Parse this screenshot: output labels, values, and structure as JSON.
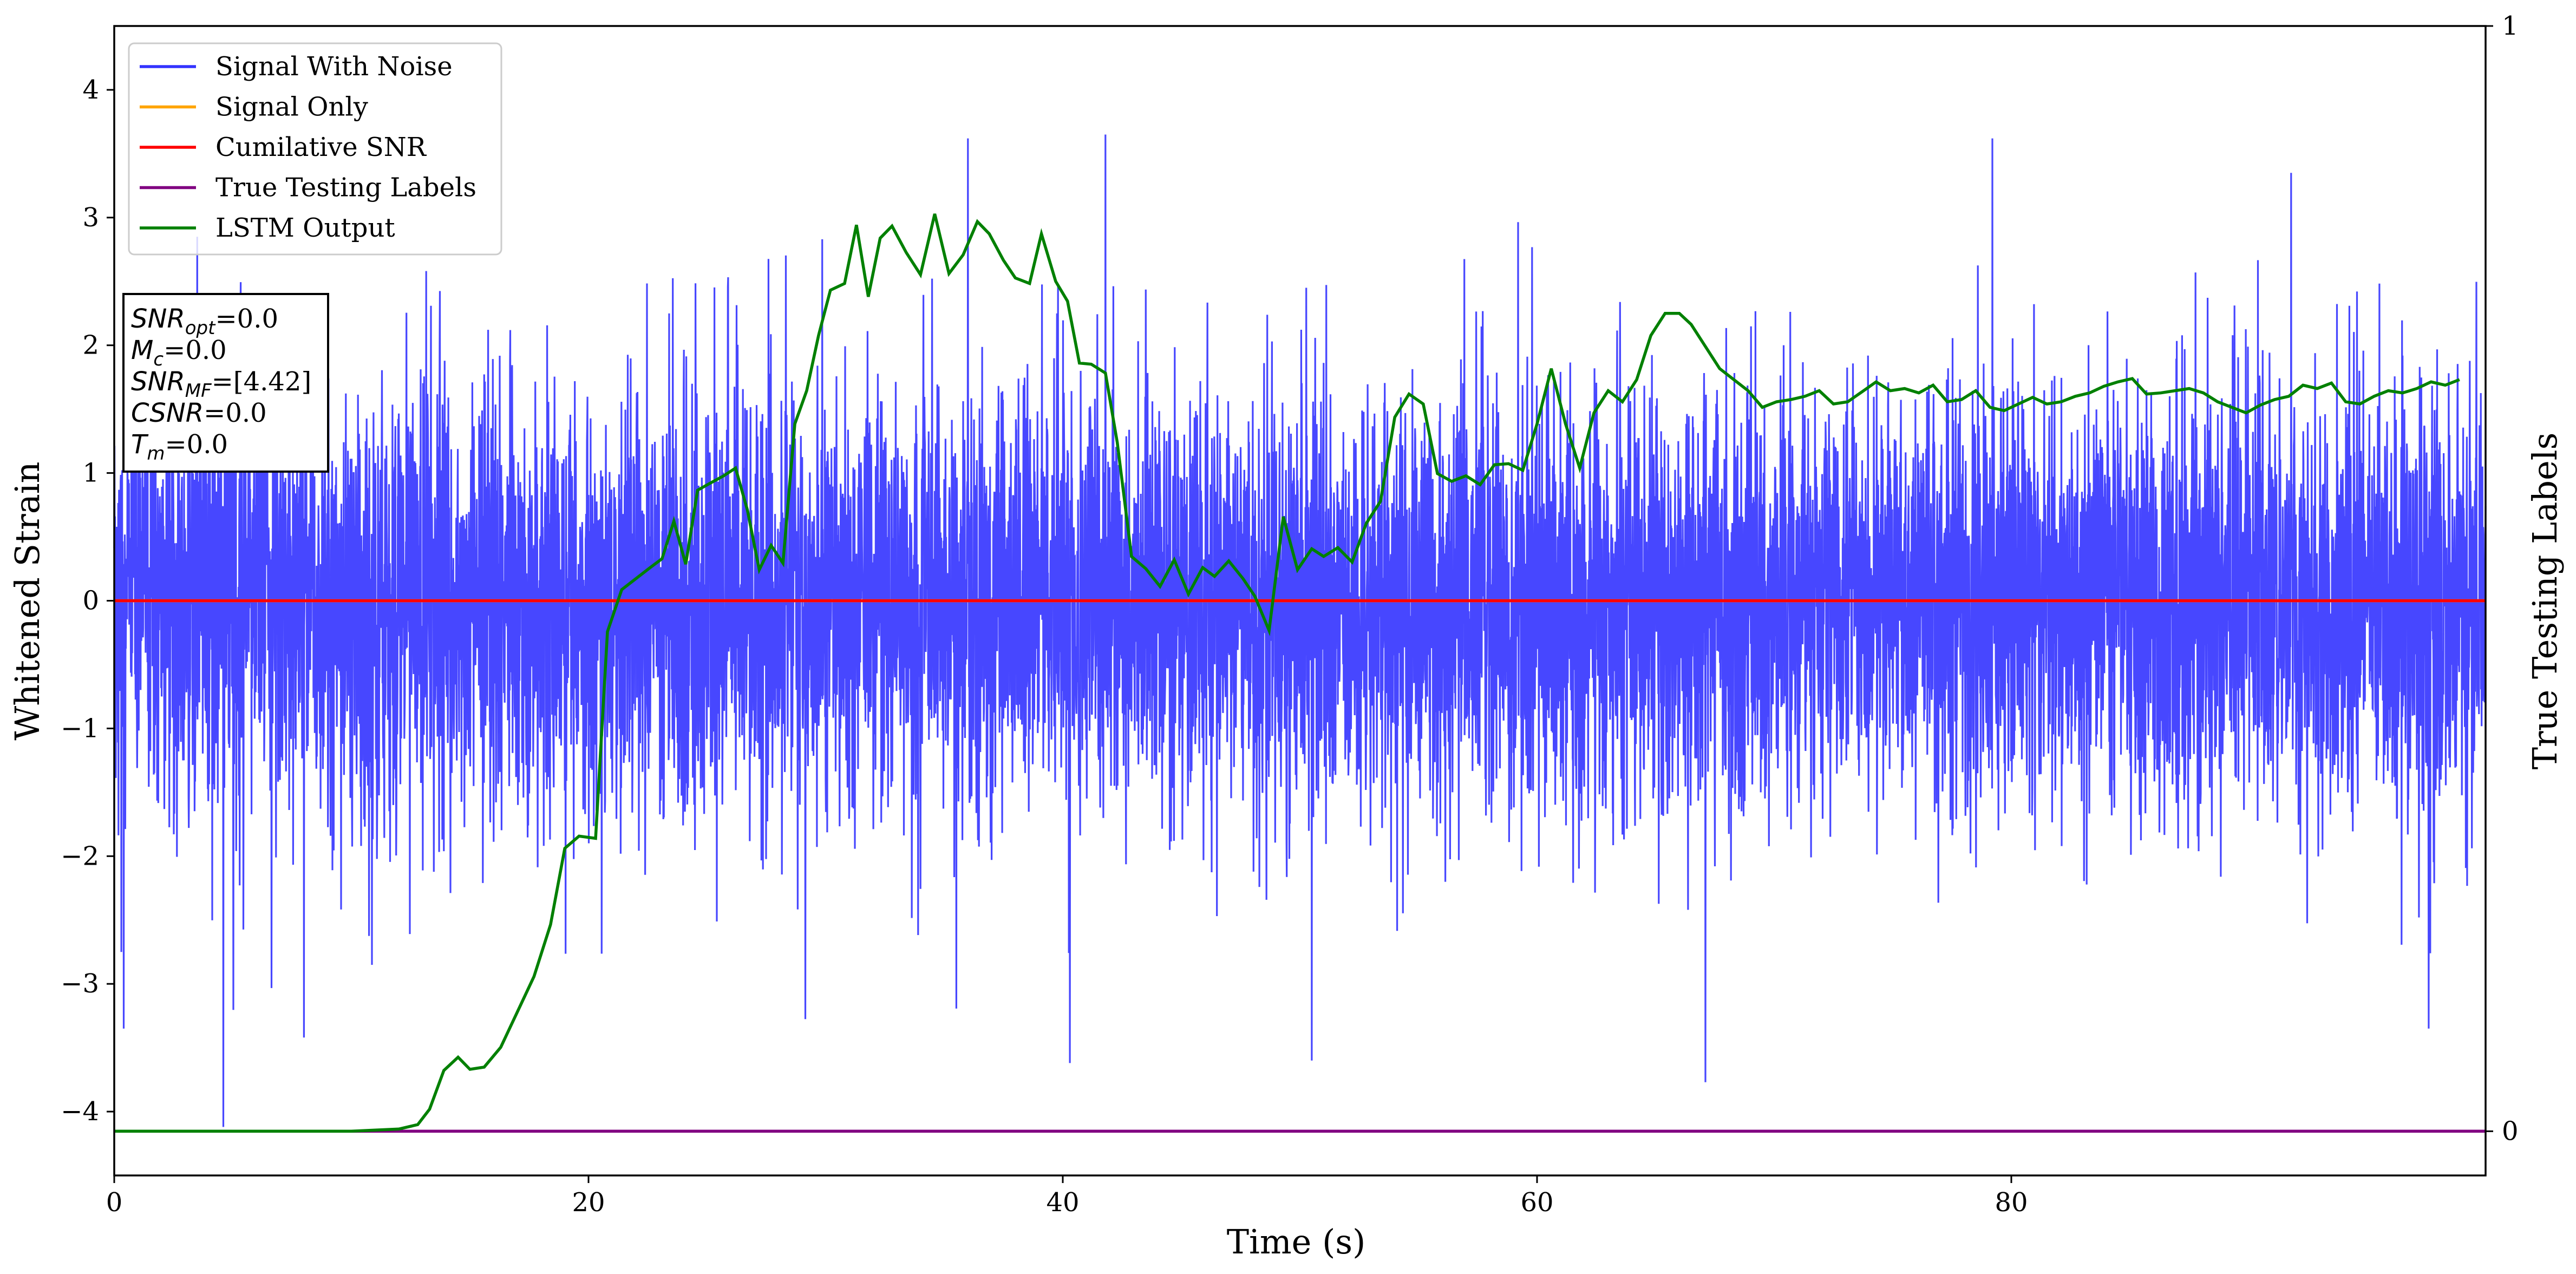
{
  "chart_data": {
    "type": "line",
    "xlabel": "Time (s)",
    "ylabel": "Whitened Strain",
    "ylabel_right": "True Testing Labels",
    "xlim": [
      0,
      100
    ],
    "ylim": [
      -4.5,
      4.5
    ],
    "ylim_right": [
      -0.04,
      1
    ],
    "x_ticks": [
      0,
      20,
      40,
      60,
      80
    ],
    "y_ticks": [
      -4,
      -3,
      -2,
      -1,
      0,
      1,
      2,
      3,
      4
    ],
    "y_ticks_right": [
      0,
      1
    ],
    "legend_position": "top-left",
    "grid": false,
    "legend": [
      {
        "name": "Signal With Noise",
        "color": "#3333ff"
      },
      {
        "name": "Signal Only",
        "color": "#ffa500"
      },
      {
        "name": "Cumilative SNR",
        "color": "#ff0000"
      },
      {
        "name": "True Testing Labels",
        "color": "#800080"
      },
      {
        "name": "LSTM Output",
        "color": "#008000"
      }
    ],
    "info_box": [
      {
        "base": "SNR",
        "sub": "opt",
        "value": "=0.0"
      },
      {
        "base": "M",
        "sub": "c",
        "value": "=0.0"
      },
      {
        "base": "SNR",
        "sub": "MF",
        "value": "=[4.42]"
      },
      {
        "base": "CSNR",
        "sub": "",
        "value": "=0.0"
      },
      {
        "base": "T",
        "sub": "m",
        "value": "=0.0"
      }
    ],
    "series": [
      {
        "name": "Signal With Noise",
        "axis": "left",
        "description": "Gaussian noise band, typical extent about -2.5 to 2.5 with spikes up to about 3.6 and down to -4.1",
        "noise_std": 0.85,
        "extremes": [
          {
            "x": 4.6,
            "y": -4.12
          },
          {
            "x": 0.4,
            "y": -3.35
          },
          {
            "x": 3.5,
            "y": 2.85
          },
          {
            "x": 8.0,
            "y": -3.42
          },
          {
            "x": 36.0,
            "y": 3.62
          },
          {
            "x": 41.8,
            "y": 3.65
          },
          {
            "x": 40.3,
            "y": -3.62
          },
          {
            "x": 50.5,
            "y": -3.6
          },
          {
            "x": 67.1,
            "y": -3.77
          },
          {
            "x": 79.2,
            "y": 3.62
          },
          {
            "x": 91.8,
            "y": 3.35
          },
          {
            "x": 97.6,
            "y": -3.35
          },
          {
            "x": 0.3,
            "y": -2.75
          }
        ]
      },
      {
        "name": "Signal Only",
        "axis": "left",
        "x": [
          0,
          100
        ],
        "y": [
          0,
          0
        ]
      },
      {
        "name": "Cumilative SNR",
        "axis": "left",
        "x": [
          0,
          100
        ],
        "y": [
          0,
          0
        ]
      },
      {
        "name": "True Testing Labels",
        "axis": "right",
        "x": [
          0,
          100
        ],
        "y": [
          0,
          0
        ]
      },
      {
        "name": "LSTM Output",
        "axis": "right",
        "x": [
          0,
          5,
          10,
          12,
          12.8,
          13.3,
          13.9,
          14.5,
          15.0,
          15.6,
          16.3,
          17.0,
          17.7,
          18.4,
          19.0,
          19.6,
          20.3,
          20.8,
          21.4,
          22.0,
          22.6,
          23.1,
          23.6,
          24.1,
          24.6,
          25.1,
          25.7,
          26.2,
          26.7,
          27.2,
          27.7,
          28.2,
          28.7,
          29.2,
          29.7,
          30.2,
          30.8,
          31.3,
          31.8,
          32.3,
          32.8,
          33.4,
          34.0,
          34.6,
          35.2,
          35.8,
          36.4,
          36.9,
          37.5,
          38.0,
          38.6,
          39.1,
          39.7,
          40.2,
          40.7,
          41.2,
          41.8,
          42.3,
          42.9,
          43.5,
          44.1,
          44.7,
          45.3,
          45.9,
          46.4,
          47.0,
          47.6,
          48.1,
          48.7,
          49.3,
          49.9,
          50.5,
          51.0,
          51.6,
          52.2,
          52.8,
          53.4,
          54.0,
          54.6,
          55.2,
          55.8,
          56.4,
          57.0,
          57.6,
          58.2,
          58.8,
          59.4,
          60.0,
          60.6,
          61.2,
          61.8,
          62.4,
          63.0,
          63.6,
          64.2,
          64.8,
          65.4,
          66.0,
          66.5,
          67.1,
          67.7,
          68.3,
          68.9,
          69.5,
          70.1,
          70.7,
          71.3,
          71.9,
          72.5,
          73.1,
          73.7,
          74.3,
          74.9,
          75.5,
          76.1,
          76.7,
          77.3,
          77.9,
          78.5,
          79.1,
          79.7,
          80.3,
          80.9,
          81.5,
          82.1,
          82.7,
          83.3,
          83.9,
          84.5,
          85.1,
          85.7,
          86.3,
          86.9,
          87.5,
          88.1,
          88.7,
          89.3,
          89.9,
          90.5,
          91.1,
          91.7,
          92.3,
          92.9,
          93.5,
          94.1,
          94.7,
          95.3,
          95.9,
          96.5,
          97.1,
          97.7,
          98.3,
          98.9
        ],
        "y": [
          0.0,
          0.0,
          0.0,
          0.002,
          0.006,
          0.02,
          0.055,
          0.067,
          0.056,
          0.058,
          0.076,
          0.108,
          0.14,
          0.187,
          0.256,
          0.267,
          0.265,
          0.452,
          0.49,
          0.5,
          0.51,
          0.518,
          0.552,
          0.513,
          0.58,
          0.586,
          0.593,
          0.6,
          0.562,
          0.508,
          0.53,
          0.514,
          0.64,
          0.67,
          0.72,
          0.761,
          0.767,
          0.82,
          0.755,
          0.808,
          0.819,
          0.795,
          0.775,
          0.83,
          0.776,
          0.793,
          0.823,
          0.812,
          0.788,
          0.772,
          0.767,
          0.812,
          0.769,
          0.751,
          0.695,
          0.694,
          0.686,
          0.623,
          0.52,
          0.509,
          0.493,
          0.517,
          0.486,
          0.51,
          0.502,
          0.516,
          0.5,
          0.484,
          0.453,
          0.556,
          0.508,
          0.527,
          0.52,
          0.528,
          0.515,
          0.55,
          0.57,
          0.646,
          0.667,
          0.658,
          0.595,
          0.588,
          0.593,
          0.585,
          0.603,
          0.604,
          0.598,
          0.64,
          0.69,
          0.64,
          0.6,
          0.65,
          0.67,
          0.66,
          0.68,
          0.72,
          0.74,
          0.74,
          0.73,
          0.71,
          0.69,
          0.68,
          0.67,
          0.655,
          0.66,
          0.662,
          0.665,
          0.67,
          0.658,
          0.66,
          0.669,
          0.678,
          0.67,
          0.672,
          0.668,
          0.675,
          0.66,
          0.662,
          0.67,
          0.655,
          0.652,
          0.658,
          0.664,
          0.658,
          0.66,
          0.665,
          0.668,
          0.674,
          0.678,
          0.681,
          0.667,
          0.668,
          0.67,
          0.672,
          0.668,
          0.66,
          0.655,
          0.65,
          0.657,
          0.662,
          0.665,
          0.675,
          0.672,
          0.677,
          0.66,
          0.658,
          0.665,
          0.67,
          0.668,
          0.672,
          0.678,
          0.675,
          0.68
        ]
      }
    ]
  }
}
